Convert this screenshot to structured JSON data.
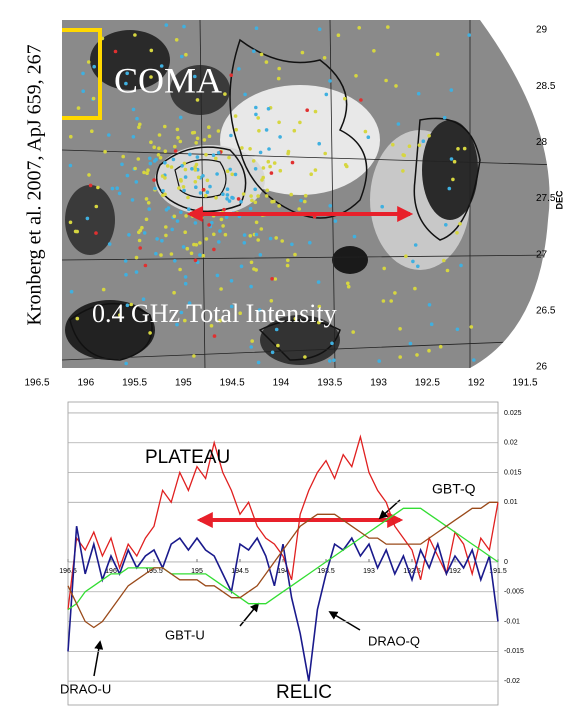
{
  "chart_data": [
    {
      "type": "map",
      "annotations": [
        "COMA",
        "0.4 GHz Total Intensity",
        "Kronberg et al. 2007, ApJ 659, 267"
      ],
      "ylabel": "DEC",
      "xlim": [
        196.5,
        191.5
      ],
      "xticks": [
        196.5,
        196,
        195.5,
        195,
        194.5,
        194,
        193.5,
        193,
        192.5,
        192,
        191.5
      ],
      "ylim": [
        26,
        29
      ],
      "yticks": [
        26,
        26.5,
        27,
        27.5,
        28,
        28.5,
        29
      ]
    },
    {
      "type": "line",
      "annotations": [
        "PLATEAU",
        "RELIC"
      ],
      "xlim": [
        196.5,
        191.5
      ],
      "xticks": [
        196.5,
        196,
        195.5,
        195,
        194.5,
        194,
        193.5,
        193,
        192.5,
        192,
        191.5
      ],
      "ylim": [
        -0.024,
        0.027
      ],
      "yticks": [
        0.025,
        0.02,
        0.015,
        0.01,
        0,
        -0.005,
        -0.01,
        -0.015,
        -0.02
      ],
      "grid": true,
      "x": [
        196.5,
        196.4,
        196.3,
        196.2,
        196.1,
        196.0,
        195.9,
        195.8,
        195.7,
        195.6,
        195.5,
        195.4,
        195.3,
        195.2,
        195.1,
        195.0,
        194.9,
        194.8,
        194.7,
        194.6,
        194.5,
        194.4,
        194.3,
        194.2,
        194.1,
        194.0,
        193.9,
        193.8,
        193.7,
        193.6,
        193.5,
        193.4,
        193.3,
        193.2,
        193.1,
        193.0,
        192.9,
        192.8,
        192.7,
        192.6,
        192.5,
        192.4,
        192.3,
        192.2,
        192.1,
        192.0,
        191.9,
        191.8,
        191.7,
        191.6,
        191.5
      ],
      "series": [
        {
          "name": "GBT-Q",
          "color": "#e02020",
          "values": [
            -0.008,
            0.004,
            0.002,
            0.005,
            0.001,
            0.004,
            -0.001,
            0.003,
            0.001,
            0.004,
            0.006,
            0.012,
            0.01,
            0.015,
            0.012,
            0.016,
            0.014,
            0.02,
            0.015,
            0.012,
            0.008,
            0.01,
            0.006,
            0.004,
            0.003,
            0.001,
            -0.003,
            0.008,
            0.012,
            0.015,
            0.017,
            0.014,
            0.018,
            0.016,
            0.021,
            0.015,
            0.012,
            0.01,
            0.006,
            0.004,
            0.002,
            -0.003,
            0.004,
            0.001,
            -0.002,
            0.005,
            0.003,
            -0.002,
            0.004,
            0.002,
            0.01
          ]
        },
        {
          "name": "GBT-U",
          "color": "#1a1a8c",
          "values": [
            -0.015,
            0.006,
            -0.002,
            0.003,
            -0.003,
            0.001,
            -0.002,
            0.002,
            -0.001,
            0.001,
            0.002,
            -0.001,
            0.003,
            0.004,
            0.002,
            0.004,
            0.002,
            0.001,
            -0.002,
            -0.005,
            0.003,
            0.002,
            0.004,
            0.001,
            -0.004,
            0.003,
            -0.006,
            -0.012,
            -0.02,
            -0.008,
            -0.002,
            0.003,
            0.002,
            0.004,
            0.001,
            0.003,
            -0.001,
            0.002,
            -0.002,
            0.001,
            -0.003,
            0.002,
            -0.001,
            0.003,
            -0.002,
            0.001,
            -0.001,
            0.002,
            -0.003,
            0.001,
            -0.01
          ]
        },
        {
          "name": "DRAO-Q",
          "color": "#33dd33",
          "values": [
            -0.008,
            -0.007,
            -0.005,
            -0.004,
            -0.003,
            -0.002,
            -0.002,
            -0.001,
            -0.001,
            -0.001,
            -0.001,
            -0.001,
            -0.002,
            -0.002,
            -0.002,
            -0.002,
            -0.002,
            -0.003,
            -0.004,
            -0.005,
            -0.006,
            -0.007,
            -0.007,
            -0.007,
            -0.006,
            -0.005,
            -0.004,
            -0.003,
            -0.002,
            -0.001,
            0.0,
            0.001,
            0.002,
            0.003,
            0.004,
            0.005,
            0.006,
            0.007,
            0.008,
            0.009,
            0.009,
            0.009,
            0.008,
            0.007,
            0.006,
            0.005,
            0.004,
            0.003,
            0.002,
            0.001,
            0.0
          ]
        },
        {
          "name": "DRAO-U",
          "color": "#9a4a1a",
          "values": [
            -0.004,
            -0.007,
            -0.01,
            -0.011,
            -0.01,
            -0.008,
            -0.006,
            -0.004,
            -0.003,
            -0.002,
            -0.001,
            -0.001,
            -0.002,
            -0.003,
            -0.003,
            -0.003,
            -0.004,
            -0.004,
            -0.005,
            -0.006,
            -0.006,
            -0.005,
            -0.004,
            -0.002,
            0.0,
            0.002,
            0.004,
            0.006,
            0.007,
            0.008,
            0.008,
            0.008,
            0.007,
            0.006,
            0.005,
            0.004,
            0.004,
            0.003,
            0.003,
            0.003,
            0.003,
            0.003,
            0.004,
            0.005,
            0.006,
            0.007,
            0.008,
            0.009,
            0.009,
            0.01,
            0.01
          ]
        }
      ]
    }
  ]
}
